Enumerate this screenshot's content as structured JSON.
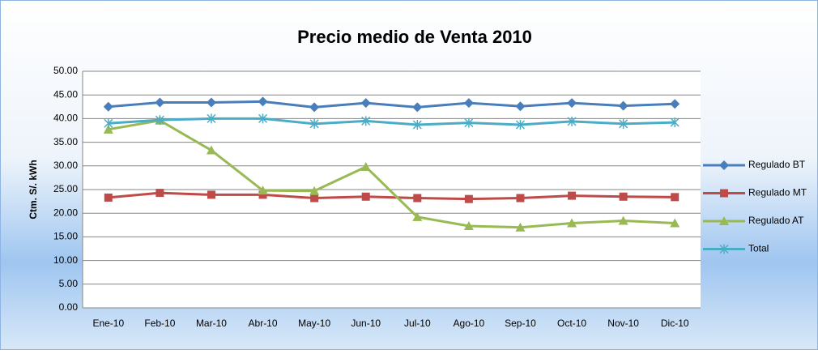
{
  "chart_data": {
    "type": "line",
    "title": "Precio medio de Venta 2010",
    "y_label": "Ctm. S/. kWh",
    "categories": [
      "Ene-10",
      "Feb-10",
      "Mar-10",
      "Abr-10",
      "May-10",
      "Jun-10",
      "Jul-10",
      "Ago-10",
      "Sep-10",
      "Oct-10",
      "Nov-10",
      "Dic-10"
    ],
    "series": [
      {
        "name": "Regulado BT",
        "color": "#4a7ebb",
        "marker": "diamond",
        "values": [
          42.5,
          43.4,
          43.4,
          43.6,
          42.4,
          43.3,
          42.4,
          43.3,
          42.6,
          43.3,
          42.7,
          43.1
        ]
      },
      {
        "name": "Regulado MT",
        "color": "#be4b48",
        "marker": "square",
        "values": [
          23.3,
          24.3,
          23.9,
          23.9,
          23.2,
          23.5,
          23.2,
          23.0,
          23.2,
          23.7,
          23.5,
          23.4
        ]
      },
      {
        "name": "Regulado AT",
        "color": "#98b954",
        "marker": "triangle",
        "values": [
          37.7,
          39.6,
          33.3,
          24.8,
          24.7,
          29.8,
          19.2,
          17.3,
          17.0,
          17.9,
          18.4,
          17.9
        ]
      },
      {
        "name": "Total",
        "color": "#4bacc6",
        "marker": "star",
        "values": [
          39.0,
          39.7,
          40.0,
          40.0,
          38.9,
          39.5,
          38.7,
          39.1,
          38.7,
          39.4,
          38.9,
          39.2
        ]
      }
    ],
    "ylim": [
      0,
      50
    ],
    "yticks": [
      {
        "value": 0,
        "label": "0.00"
      },
      {
        "value": 5,
        "label": "5.00"
      },
      {
        "value": 10,
        "label": "10.00"
      },
      {
        "value": 15,
        "label": "15.00"
      },
      {
        "value": 20,
        "label": "20.00"
      },
      {
        "value": 25,
        "label": "25.00"
      },
      {
        "value": 30,
        "label": "30.00"
      },
      {
        "value": 35,
        "label": "35.00"
      },
      {
        "value": 40,
        "label": "40.00"
      },
      {
        "value": 45,
        "label": "45.00"
      },
      {
        "value": 50,
        "label": "50.00"
      }
    ],
    "grid": true,
    "legend": "right"
  }
}
